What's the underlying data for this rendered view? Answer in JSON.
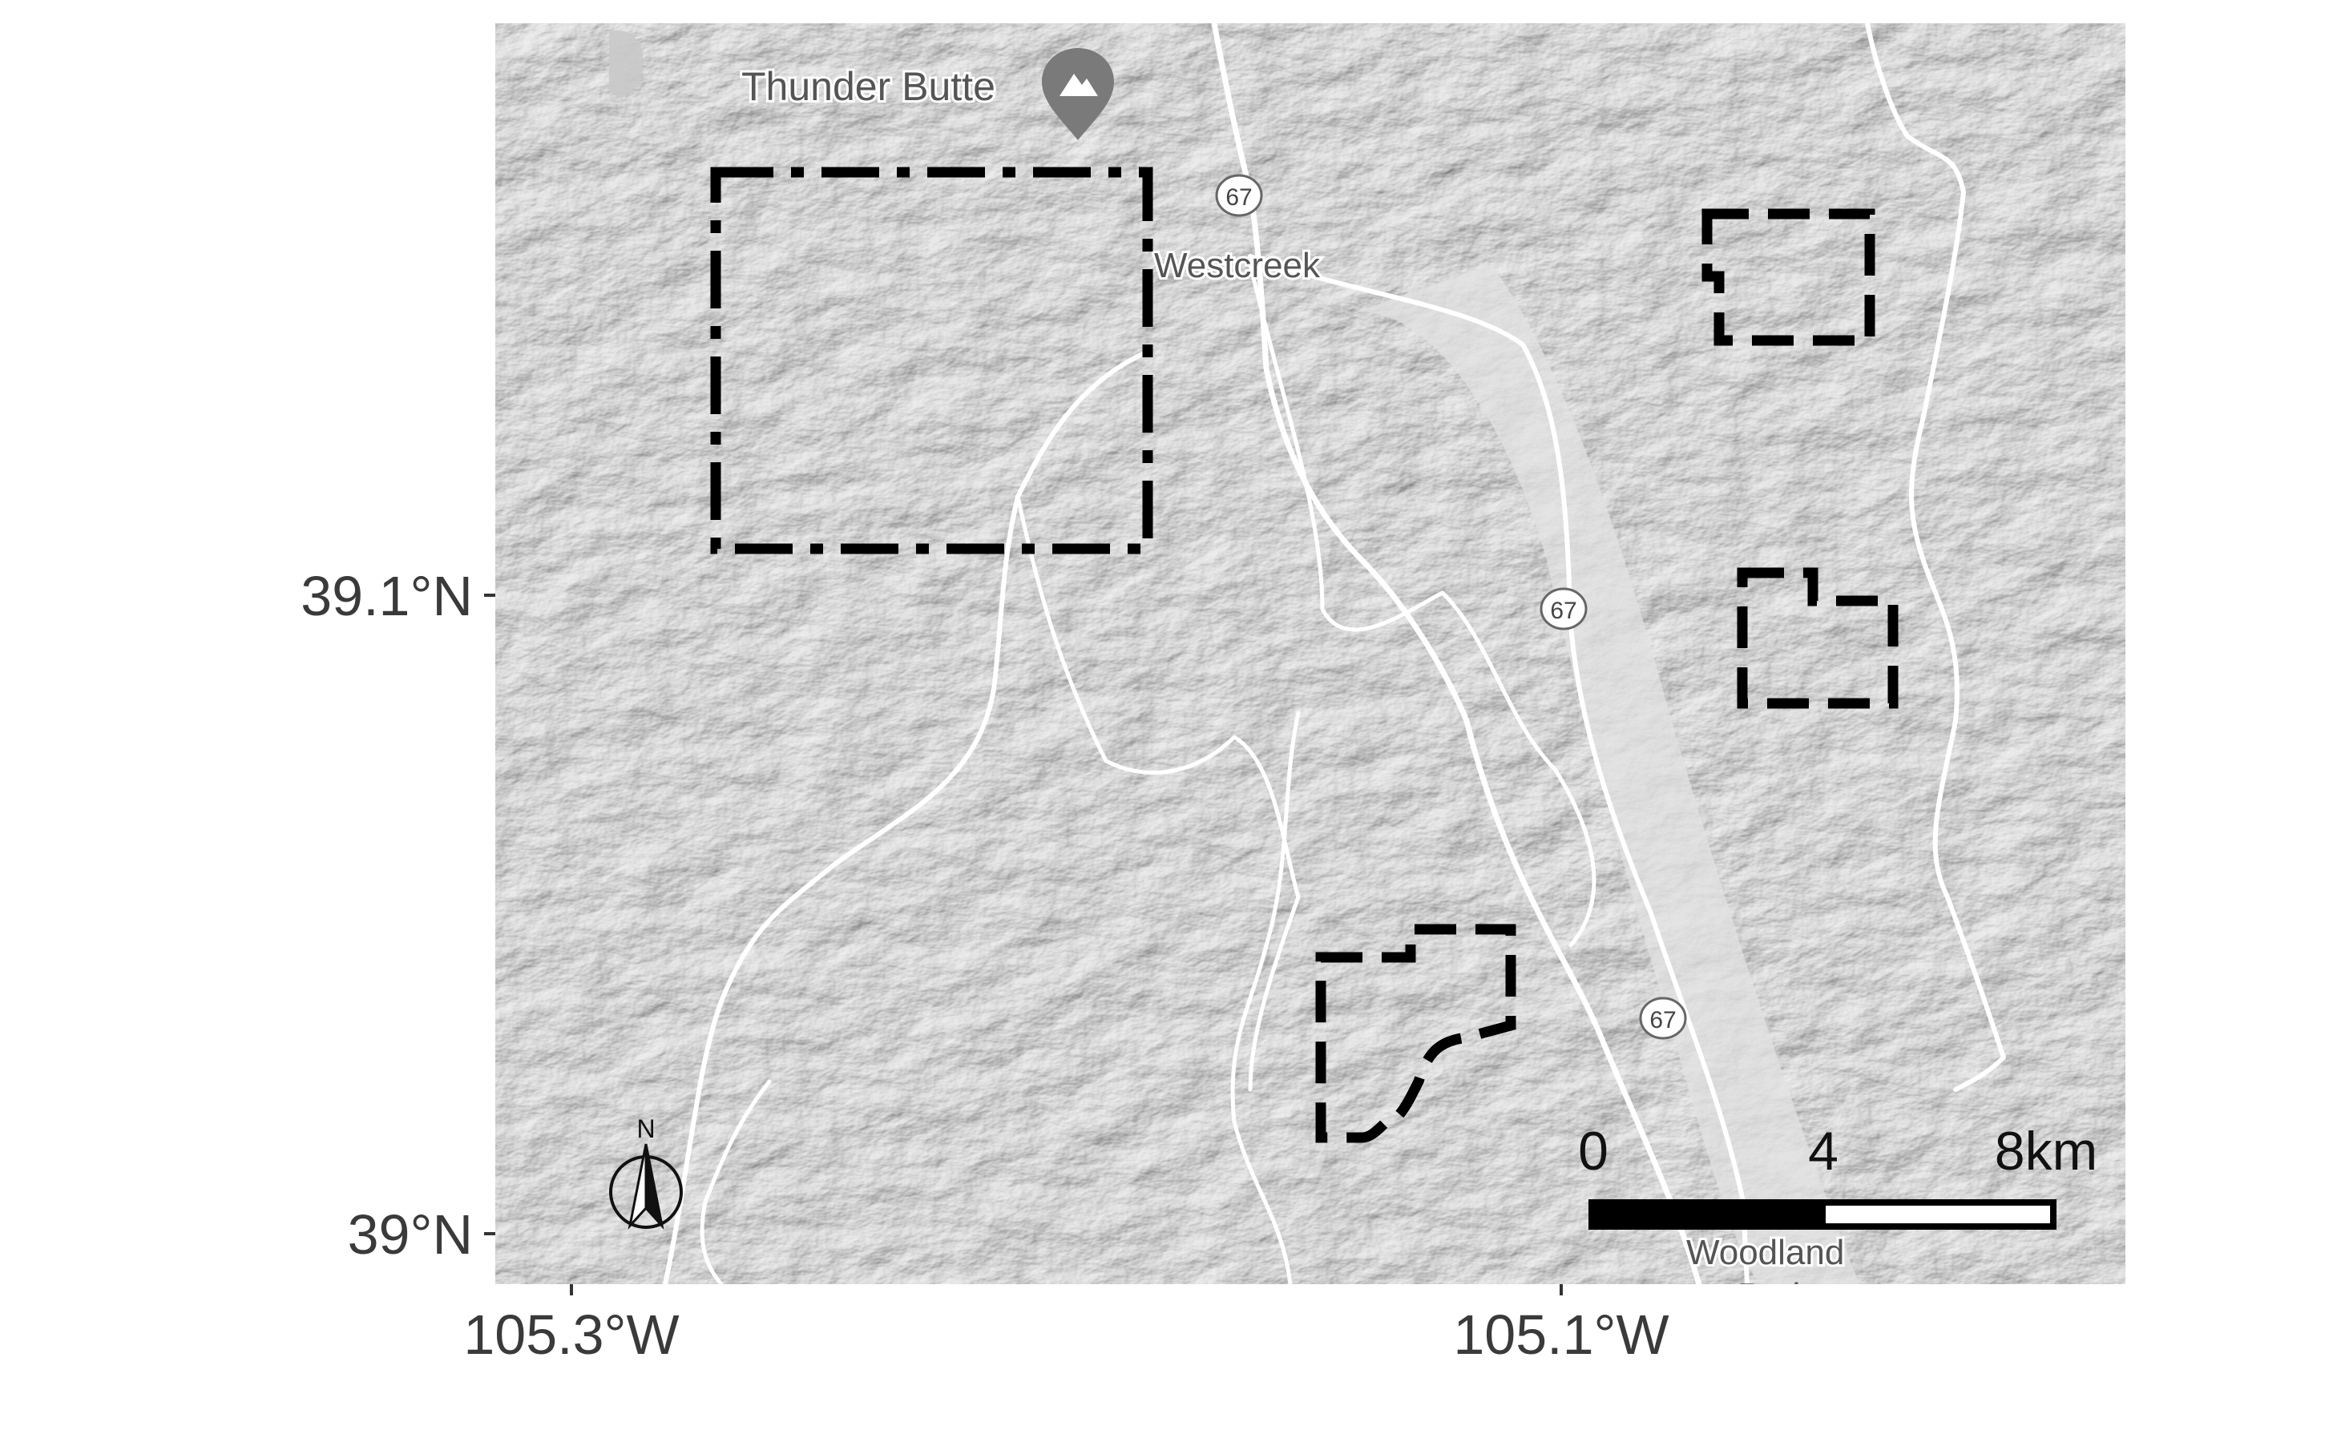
{
  "map": {
    "places": [
      {
        "name": "Thunder Butte"
      },
      {
        "name": "Westcreek"
      },
      {
        "name": "Woodland"
      }
    ],
    "highway_shields": [
      "67",
      "67",
      "67"
    ],
    "y_axis_ticks": [
      "39.1°N",
      "39°N"
    ],
    "x_axis_ticks": [
      "105.3°W",
      "105.1°W"
    ],
    "scale_bar": {
      "labels": [
        "0",
        "4",
        "8km"
      ]
    },
    "north_arrow": {
      "label": "N",
      "icon": "north-arrow-icon"
    },
    "study_areas": [
      {
        "style": "dash-dot"
      },
      {
        "style": "dashed"
      },
      {
        "style": "dashed"
      },
      {
        "style": "dashed"
      }
    ],
    "colors": {
      "terrain_light": "#e6e6e6",
      "terrain_dark": "#a9a9a9",
      "road": "#ffffff",
      "outline": "#000000"
    }
  }
}
